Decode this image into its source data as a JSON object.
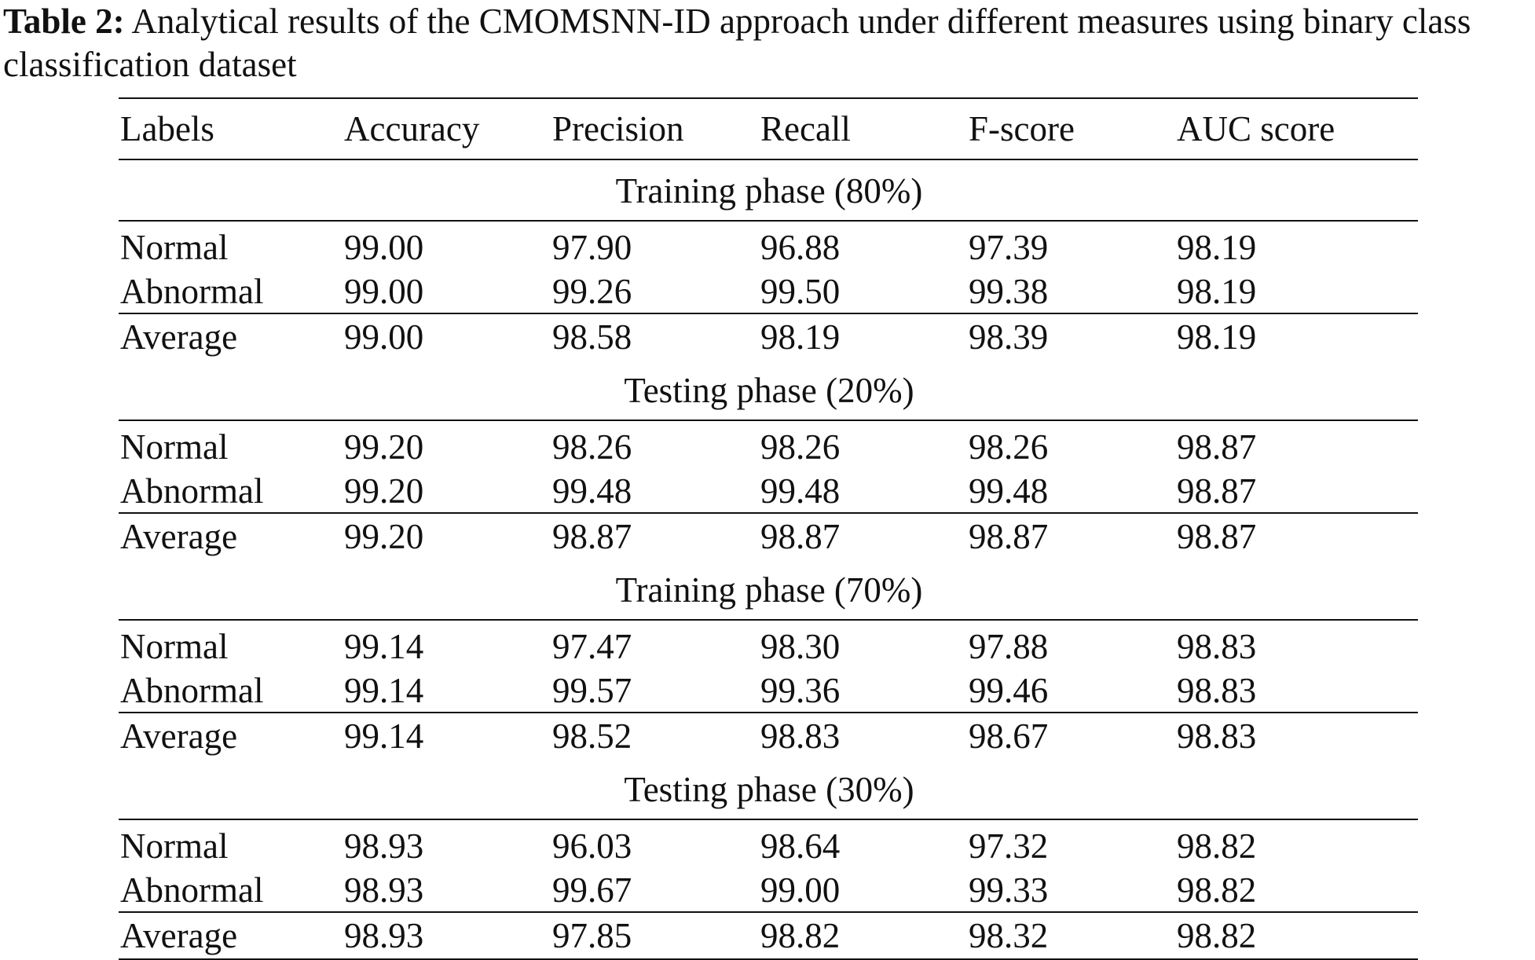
{
  "caption": {
    "label": "Table 2:",
    "text": " Analytical results of the CMOMSNN-ID approach under different measures using binary class classification dataset"
  },
  "table": {
    "headers": [
      "Labels",
      "Accuracy",
      "Precision",
      "Recall",
      "F-score",
      "AUC score"
    ],
    "sections": [
      {
        "title": "Training phase (80%)",
        "rows": [
          [
            "Normal",
            "99.00",
            "97.90",
            "96.88",
            "97.39",
            "98.19"
          ],
          [
            "Abnormal",
            "99.00",
            "99.26",
            "99.50",
            "99.38",
            "98.19"
          ]
        ],
        "average": [
          "Average",
          "99.00",
          "98.58",
          "98.19",
          "98.39",
          "98.19"
        ]
      },
      {
        "title": "Testing phase (20%)",
        "rows": [
          [
            "Normal",
            "99.20",
            "98.26",
            "98.26",
            "98.26",
            "98.87"
          ],
          [
            "Abnormal",
            "99.20",
            "99.48",
            "99.48",
            "99.48",
            "98.87"
          ]
        ],
        "average": [
          "Average",
          "99.20",
          "98.87",
          "98.87",
          "98.87",
          "98.87"
        ]
      },
      {
        "title": "Training phase (70%)",
        "rows": [
          [
            "Normal",
            "99.14",
            "97.47",
            "98.30",
            "97.88",
            "98.83"
          ],
          [
            "Abnormal",
            "99.14",
            "99.57",
            "99.36",
            "99.46",
            "98.83"
          ]
        ],
        "average": [
          "Average",
          "99.14",
          "98.52",
          "98.83",
          "98.67",
          "98.83"
        ]
      },
      {
        "title": "Testing phase (30%)",
        "rows": [
          [
            "Normal",
            "98.93",
            "96.03",
            "98.64",
            "97.32",
            "98.82"
          ],
          [
            "Abnormal",
            "98.93",
            "99.67",
            "99.00",
            "99.33",
            "98.82"
          ]
        ],
        "average": [
          "Average",
          "98.93",
          "97.85",
          "98.82",
          "98.32",
          "98.82"
        ]
      }
    ]
  }
}
